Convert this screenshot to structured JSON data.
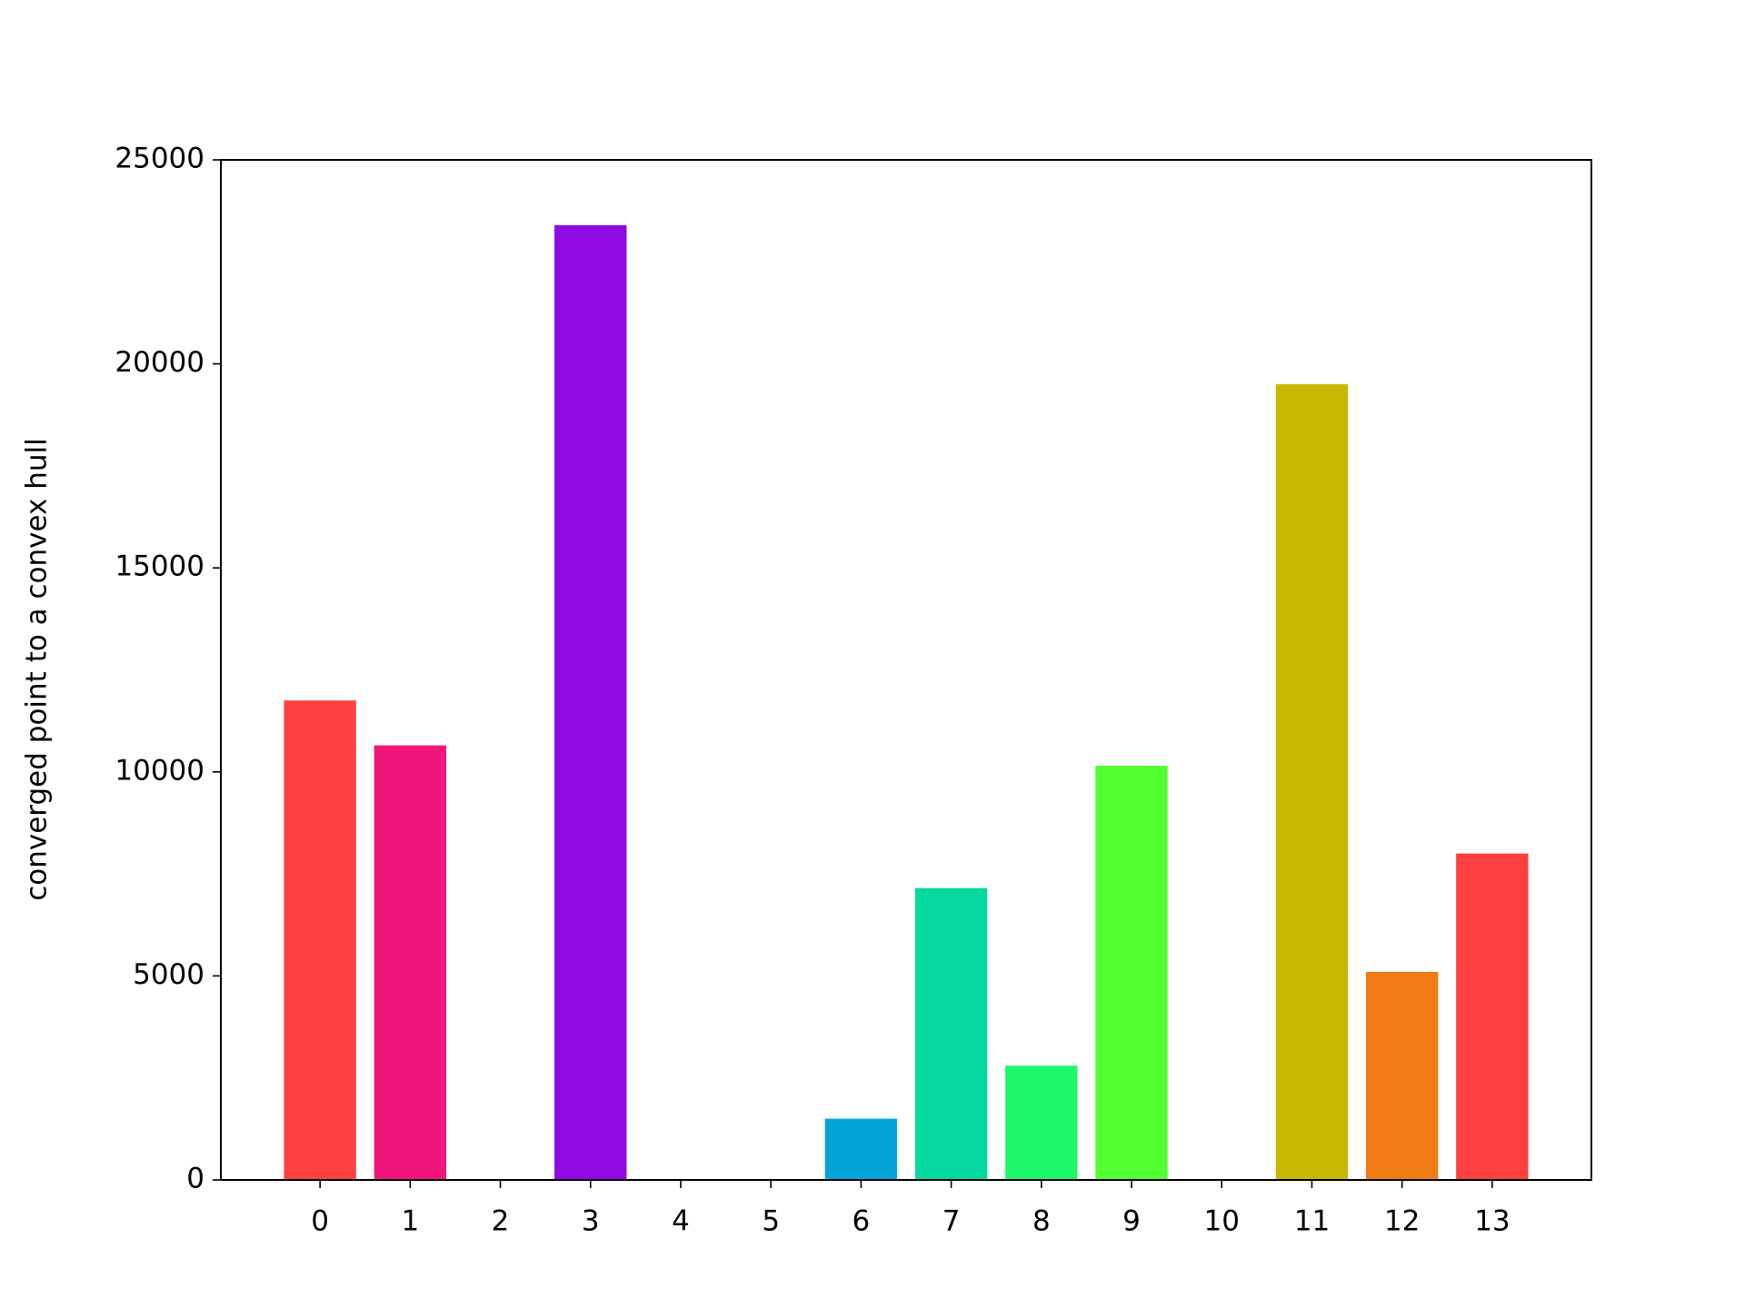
{
  "chart_data": {
    "type": "bar",
    "y_label": "converged point to a convex hull",
    "categories": [
      "0",
      "1",
      "2",
      "3",
      "4",
      "5",
      "6",
      "7",
      "8",
      "9",
      "10",
      "11",
      "12",
      "13"
    ],
    "values": [
      11750,
      10650,
      0,
      23400,
      0,
      0,
      1500,
      7150,
      2800,
      10150,
      0,
      19500,
      5100,
      8000
    ],
    "colors": [
      "#ff4040",
      "#f0157a",
      "#8f0ae3",
      "#8f0ae3",
      "#8f0ae3",
      "#8f0ae3",
      "#03a5d8",
      "#05d89e",
      "#1ff76a",
      "#53ff31",
      "#c7b802",
      "#c7b802",
      "#f07b15",
      "#ff4040"
    ],
    "ylim": [
      0,
      25000
    ],
    "yticks": [
      0,
      5000,
      10000,
      15000,
      20000,
      25000
    ],
    "grid": false
  }
}
